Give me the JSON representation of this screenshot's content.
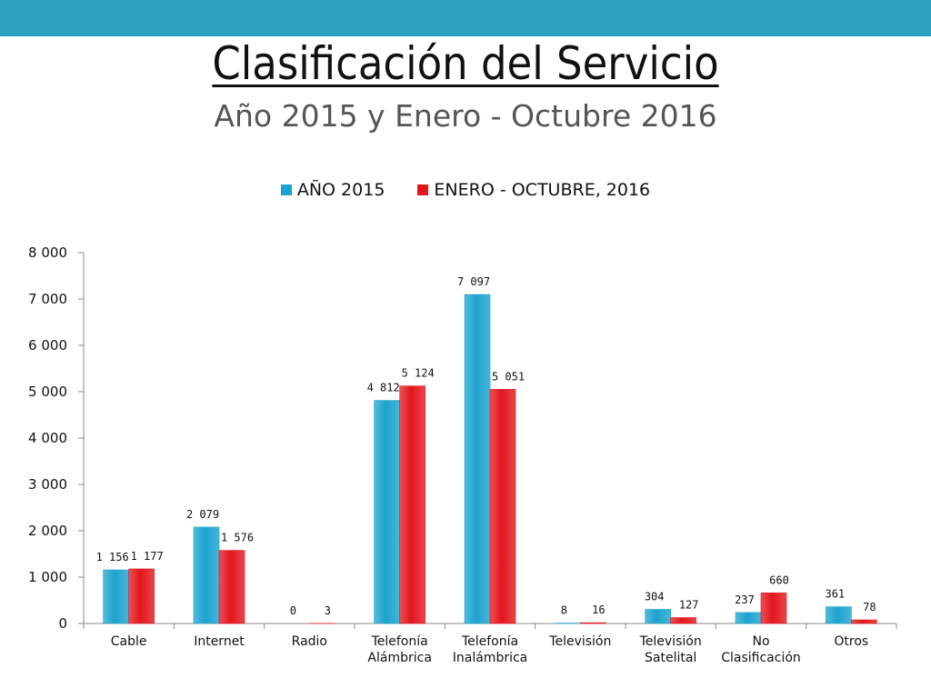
{
  "header": {
    "title": "Clasificación del Servicio",
    "subtitle": "Año 2015 y Enero - Octubre 2016",
    "bar_color": "#2aa1c0"
  },
  "chart_data": {
    "type": "bar",
    "categories": [
      [
        "Cable"
      ],
      [
        "Internet"
      ],
      [
        "Radio"
      ],
      [
        "Telefonía",
        "Alámbrica"
      ],
      [
        "Telefonía",
        "Inalámbrica"
      ],
      [
        "Televisión"
      ],
      [
        "Televisión",
        "Satelital"
      ],
      [
        "No",
        "Clasificación"
      ],
      [
        "Otros"
      ]
    ],
    "series": [
      {
        "name": "AÑO 2015",
        "color": "#1ba3cf",
        "values": [
          1156,
          2079,
          0,
          4812,
          7097,
          8,
          304,
          237,
          361
        ],
        "labels": [
          "1 156",
          "2 079",
          "0",
          "4 812",
          "7 097",
          "8",
          "304",
          "237",
          "361"
        ]
      },
      {
        "name": "ENERO - OCTUBRE, 2016",
        "color": "#e3161d",
        "values": [
          1177,
          1576,
          3,
          5124,
          5051,
          16,
          127,
          660,
          78
        ],
        "labels": [
          "1 177",
          "1 576",
          "3",
          "5 124",
          "5 051",
          "16",
          "127",
          "660",
          "78"
        ]
      }
    ],
    "ylim": [
      0,
      8000
    ],
    "yticks": [
      {
        "value": 0,
        "label": "0"
      },
      {
        "value": 1000,
        "label": "1 000"
      },
      {
        "value": 2000,
        "label": "2 000"
      },
      {
        "value": 3000,
        "label": "3 000"
      },
      {
        "value": 4000,
        "label": "4 000"
      },
      {
        "value": 5000,
        "label": "5 000"
      },
      {
        "value": 6000,
        "label": "6 000"
      },
      {
        "value": 7000,
        "label": "7 000"
      },
      {
        "value": 8000,
        "label": "8 000"
      }
    ],
    "grid": false,
    "legend_position": "top"
  }
}
